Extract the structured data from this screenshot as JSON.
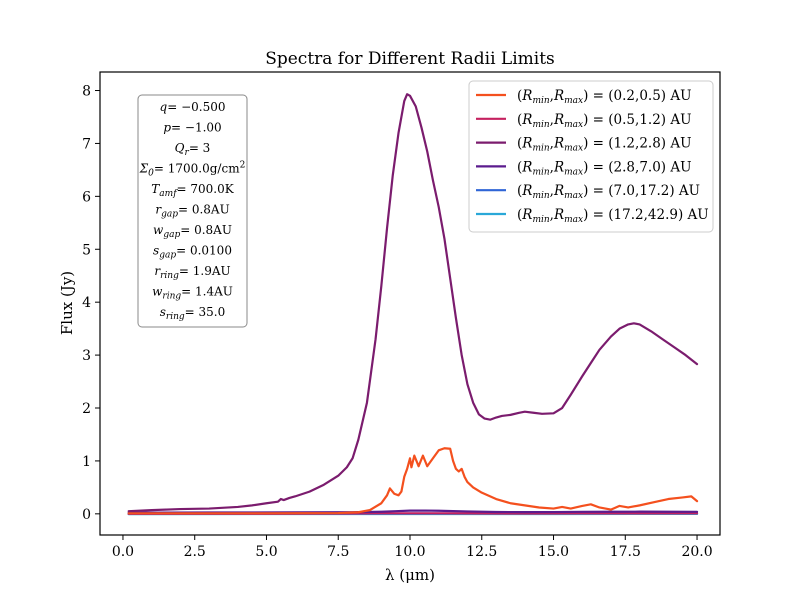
{
  "chart_data": {
    "type": "line",
    "title": "Spectra for Different Radii Limits",
    "xlabel": "λ (μm)",
    "ylabel": "Flux (Jy)",
    "xlim": [
      -0.8,
      20.8
    ],
    "ylim": [
      -0.4,
      8.35
    ],
    "xticks": [
      0.0,
      2.5,
      5.0,
      7.5,
      10.0,
      12.5,
      15.0,
      17.5,
      20.0
    ],
    "xtick_labels": [
      "0.0",
      "2.5",
      "5.0",
      "7.5",
      "10.0",
      "12.5",
      "15.0",
      "17.5",
      "20.0"
    ],
    "yticks": [
      0,
      1,
      2,
      3,
      4,
      5,
      6,
      7,
      8
    ],
    "ytick_labels": [
      "0",
      "1",
      "2",
      "3",
      "4",
      "5",
      "6",
      "7",
      "8"
    ],
    "grid": false,
    "legend_position": "top-right",
    "series": [
      {
        "name": "(Rmin,Rmax) = (0.2,0.5) AU",
        "color": "#f4501e",
        "x": [
          0.2,
          5.0,
          7.5,
          8.2,
          8.6,
          9.0,
          9.2,
          9.3,
          9.45,
          9.6,
          9.7,
          9.8,
          9.9,
          10.0,
          10.05,
          10.15,
          10.3,
          10.45,
          10.6,
          10.8,
          11.0,
          11.2,
          11.4,
          11.5,
          11.6,
          11.7,
          11.8,
          11.9,
          12.0,
          12.2,
          12.5,
          13.0,
          13.5,
          14.0,
          14.5,
          15.0,
          15.3,
          15.6,
          16.0,
          16.3,
          16.6,
          17.0,
          17.3,
          17.6,
          18.0,
          18.5,
          19.0,
          19.5,
          19.8,
          20.0
        ],
        "y": [
          0.01,
          0.01,
          0.015,
          0.03,
          0.07,
          0.2,
          0.35,
          0.48,
          0.38,
          0.35,
          0.42,
          0.7,
          0.85,
          1.05,
          0.88,
          1.1,
          0.9,
          1.1,
          0.9,
          1.05,
          1.2,
          1.24,
          1.23,
          1.0,
          0.85,
          0.8,
          0.85,
          0.7,
          0.6,
          0.5,
          0.4,
          0.28,
          0.2,
          0.16,
          0.12,
          0.1,
          0.13,
          0.1,
          0.15,
          0.18,
          0.12,
          0.08,
          0.15,
          0.12,
          0.16,
          0.22,
          0.28,
          0.31,
          0.33,
          0.24
        ]
      },
      {
        "name": "(Rmin,Rmax) = (0.5,1.2) AU",
        "color": "#c5215f",
        "x": [
          0.2,
          5.0,
          7.5,
          9.0,
          10.0,
          11.0,
          12.0,
          14.0,
          16.0,
          18.0,
          20.0
        ],
        "y": [
          0.0,
          0.0,
          0.005,
          0.01,
          0.01,
          0.01,
          0.008,
          0.006,
          0.008,
          0.009,
          0.01
        ]
      },
      {
        "name": "(Rmin,Rmax) = (1.2,2.8) AU",
        "color": "#7b1c6e",
        "x": [
          0.2,
          1.0,
          2.0,
          3.0,
          4.0,
          4.5,
          5.0,
          5.4,
          5.5,
          5.6,
          5.8,
          6.0,
          6.5,
          7.0,
          7.5,
          7.8,
          8.0,
          8.2,
          8.5,
          8.8,
          9.0,
          9.2,
          9.4,
          9.6,
          9.8,
          9.9,
          10.0,
          10.2,
          10.4,
          10.6,
          10.8,
          11.0,
          11.2,
          11.4,
          11.6,
          11.8,
          12.0,
          12.2,
          12.4,
          12.6,
          12.8,
          13.0,
          13.2,
          13.5,
          13.8,
          14.0,
          14.3,
          14.6,
          15.0,
          15.3,
          15.6,
          16.0,
          16.3,
          16.6,
          17.0,
          17.3,
          17.6,
          17.8,
          18.0,
          18.4,
          18.8,
          19.2,
          19.6,
          20.0
        ],
        "y": [
          0.05,
          0.07,
          0.09,
          0.1,
          0.13,
          0.16,
          0.2,
          0.23,
          0.28,
          0.26,
          0.3,
          0.33,
          0.42,
          0.55,
          0.72,
          0.88,
          1.05,
          1.4,
          2.1,
          3.3,
          4.3,
          5.4,
          6.4,
          7.2,
          7.8,
          7.93,
          7.9,
          7.7,
          7.3,
          6.85,
          6.3,
          5.8,
          5.2,
          4.45,
          3.7,
          3.0,
          2.45,
          2.1,
          1.88,
          1.8,
          1.78,
          1.82,
          1.85,
          1.87,
          1.91,
          1.93,
          1.91,
          1.89,
          1.9,
          2.0,
          2.25,
          2.6,
          2.85,
          3.1,
          3.35,
          3.5,
          3.58,
          3.6,
          3.58,
          3.45,
          3.3,
          3.15,
          3.0,
          2.83
        ]
      },
      {
        "name": "(Rmin,Rmax) = (2.8,7.0) AU",
        "color": "#5b1b8e",
        "x": [
          0.2,
          3.0,
          6.0,
          8.0,
          9.0,
          9.5,
          10.0,
          10.5,
          11.0,
          12.0,
          13.0,
          14.0,
          15.0,
          16.0,
          17.0,
          18.0,
          19.0,
          20.0
        ],
        "y": [
          0.02,
          0.025,
          0.028,
          0.03,
          0.04,
          0.05,
          0.06,
          0.062,
          0.058,
          0.045,
          0.035,
          0.032,
          0.034,
          0.038,
          0.04,
          0.041,
          0.04,
          0.038
        ]
      },
      {
        "name": "(Rmin,Rmax) = (7.0,17.2) AU",
        "color": "#2f65d6",
        "x": [
          0.2,
          5.0,
          10.0,
          15.0,
          20.0
        ],
        "y": [
          0.0,
          0.003,
          0.006,
          0.008,
          0.01
        ]
      },
      {
        "name": "(Rmin,Rmax) = (17.2,42.9) AU",
        "color": "#2aa8d8",
        "x": [
          0.2,
          5.0,
          10.0,
          15.0,
          20.0
        ],
        "y": [
          -0.005,
          -0.004,
          -0.003,
          -0.003,
          -0.002
        ]
      }
    ],
    "legend": [
      {
        "label_prefix": "(R",
        "sub1": "min",
        "mid": ",R",
        "sub2": "max",
        "suffix": ") = (0.2,0.5) AU"
      },
      {
        "label_prefix": "(R",
        "sub1": "min",
        "mid": ",R",
        "sub2": "max",
        "suffix": ") = (0.5,1.2) AU"
      },
      {
        "label_prefix": "(R",
        "sub1": "min",
        "mid": ",R",
        "sub2": "max",
        "suffix": ") = (1.2,2.8) AU"
      },
      {
        "label_prefix": "(R",
        "sub1": "min",
        "mid": ",R",
        "sub2": "max",
        "suffix": ") = (2.8,7.0) AU"
      },
      {
        "label_prefix": "(R",
        "sub1": "min",
        "mid": ",R",
        "sub2": "max",
        "suffix": ") = (7.0,17.2) AU"
      },
      {
        "label_prefix": "(R",
        "sub1": "min",
        "mid": ",R",
        "sub2": "max",
        "suffix": ") = (17.2,42.9) AU"
      }
    ],
    "parameters_box": [
      {
        "symbol": "q",
        "sub": "",
        "sup": "",
        "value": "= −0.500"
      },
      {
        "symbol": "p",
        "sub": "",
        "sup": "",
        "value": "= −1.00"
      },
      {
        "symbol": "Q",
        "sub": "r",
        "sup": "",
        "value": "= 3"
      },
      {
        "symbol": "Σ",
        "sub": "0",
        "sup": "",
        "value": "= 1700.0g/cm",
        "value_sup": "2"
      },
      {
        "symbol": "T",
        "sub": "amf",
        "sup": "",
        "value": "= 700.0K"
      },
      {
        "symbol": "r",
        "sub": "gap",
        "sup": "",
        "value": "= 0.8AU"
      },
      {
        "symbol": "w",
        "sub": "gap",
        "sup": "",
        "value": "= 0.8AU"
      },
      {
        "symbol": "s",
        "sub": "gap",
        "sup": "",
        "value": "= 0.0100"
      },
      {
        "symbol": "r",
        "sub": "ring",
        "sup": "",
        "value": "= 1.9AU"
      },
      {
        "symbol": "w",
        "sub": "ring",
        "sup": "",
        "value": "= 1.4AU"
      },
      {
        "symbol": "s",
        "sub": "ring",
        "sup": "",
        "value": "= 35.0"
      }
    ]
  }
}
